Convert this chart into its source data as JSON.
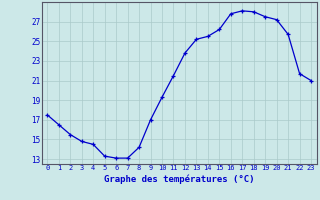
{
  "hours": [
    0,
    1,
    2,
    3,
    4,
    5,
    6,
    7,
    8,
    9,
    10,
    11,
    12,
    13,
    14,
    15,
    16,
    17,
    18,
    19,
    20,
    21,
    22,
    23
  ],
  "temps": [
    17.5,
    16.5,
    15.5,
    14.8,
    14.5,
    13.3,
    13.1,
    13.1,
    14.2,
    17.0,
    19.3,
    21.5,
    23.8,
    25.2,
    25.5,
    26.2,
    27.8,
    28.1,
    28.0,
    27.5,
    27.2,
    25.7,
    21.7,
    21.0
  ],
  "xlabel": "Graphe des températures (°C)",
  "ylabel_ticks": [
    13,
    15,
    17,
    19,
    21,
    23,
    25,
    27
  ],
  "xlim": [
    -0.5,
    23.5
  ],
  "ylim": [
    12.5,
    29.0
  ],
  "line_color": "#0000cc",
  "marker_color": "#0000cc",
  "bg_color": "#cce8e8",
  "grid_color": "#aacaca",
  "axis_label_color": "#0000cc",
  "tick_color": "#0000cc",
  "spine_color": "#555566"
}
